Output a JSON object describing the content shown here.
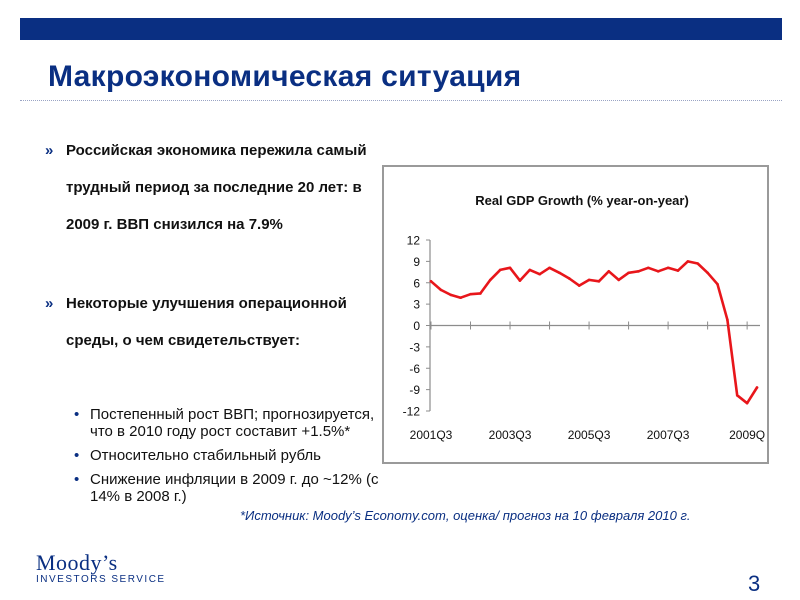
{
  "slide": {
    "title": "Макроэкономическая ситуация",
    "page_number": "3",
    "bullets": [
      {
        "marker": "»",
        "text": "Российская экономика пережила самый трудный период за последние 20 лет: в 2009 г. ВВП снизился на 7.9%"
      },
      {
        "marker": "»",
        "text": "Некоторые улучшения операционной среды, о чем свидетельствует:"
      }
    ],
    "sub_bullets": [
      {
        "marker": "•",
        "text": "Постепенный рост ВВП; прогнозируется, что в 2010 году рост составит +1.5%*"
      },
      {
        "marker": "•",
        "text": "Относительно стабильный рубль"
      },
      {
        "marker": "•",
        "text": "Снижение инфляции в 2009 г. до ~12% (с 14% в 2008 г.)"
      }
    ],
    "source_note": "*Источник: Moody’s Economy.com, оценка/ прогноз на 10 февраля 2010 г.",
    "logo": {
      "line1": "Moody’s",
      "line2": "INVESTORS SERVICE"
    },
    "colors": {
      "brand": "#0a2f82",
      "series_line": "#e8161b"
    }
  },
  "chart_data": {
    "type": "line",
    "title": "Real GDP Growth (% year-on-year)",
    "xlabel": "",
    "ylabel": "",
    "ylim": [
      -12,
      12
    ],
    "yticks": [
      "12",
      "9",
      "6",
      "3",
      "0",
      "-3",
      "-6",
      "-9",
      "-12"
    ],
    "xtick_labels": [
      "2001Q3",
      "2003Q3",
      "2005Q3",
      "2007Q3",
      "2009Q"
    ],
    "grid": false,
    "legend": "none",
    "x": [
      "2001Q3",
      "2001Q4",
      "2002Q1",
      "2002Q2",
      "2002Q3",
      "2002Q4",
      "2003Q1",
      "2003Q2",
      "2003Q3",
      "2003Q4",
      "2004Q1",
      "2004Q2",
      "2004Q3",
      "2004Q4",
      "2005Q1",
      "2005Q2",
      "2005Q3",
      "2005Q4",
      "2006Q1",
      "2006Q2",
      "2006Q3",
      "2006Q4",
      "2007Q1",
      "2007Q2",
      "2007Q3",
      "2007Q4",
      "2008Q1",
      "2008Q2",
      "2008Q3",
      "2008Q4",
      "2009Q1",
      "2009Q2",
      "2009Q3",
      "2009Q4"
    ],
    "series": [
      {
        "values": [
          6.2,
          5.0,
          4.3,
          3.9,
          4.4,
          4.5,
          6.4,
          7.8,
          8.1,
          6.3,
          7.8,
          7.2,
          8.1,
          7.4,
          6.6,
          5.6,
          6.4,
          6.2,
          7.6,
          6.4,
          7.4,
          7.6,
          8.1,
          7.6,
          8.1,
          7.7,
          9.0,
          8.7,
          7.4,
          5.8,
          0.8,
          -9.8,
          -10.9,
          -8.7
        ]
      }
    ]
  }
}
